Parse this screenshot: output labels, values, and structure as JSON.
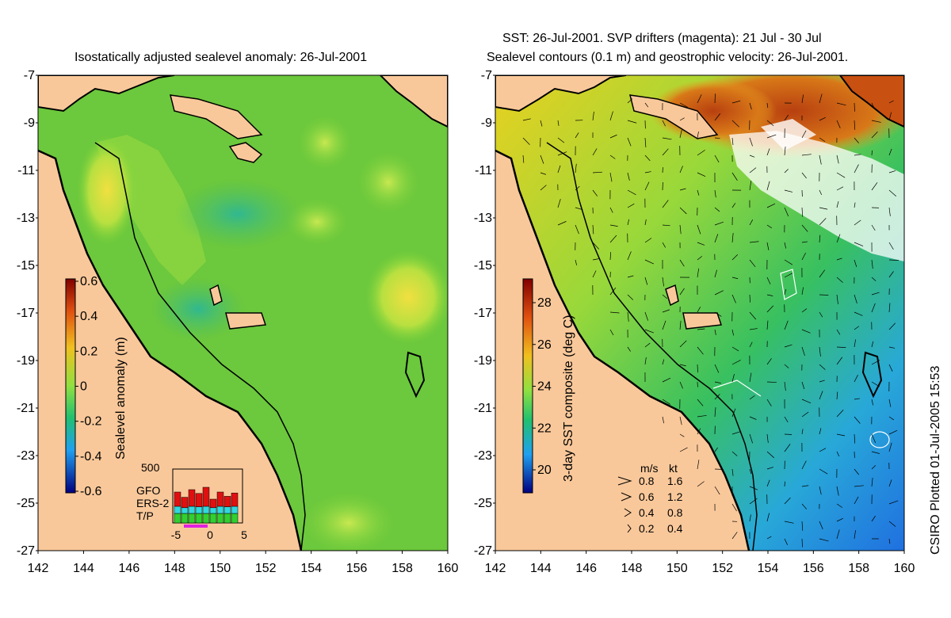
{
  "left_panel": {
    "title": "Isostatically adjusted sealevel anomaly: 26-Jul-2001",
    "colorbar": {
      "label": "Sealevel anomaly (m)",
      "ticks": [
        "0.6",
        "0.4",
        "0.2",
        "0",
        "-0.2",
        "-0.4",
        "-0.6"
      ]
    },
    "inset": {
      "ymax_label": "500",
      "legend": [
        "GFO",
        "ERS-2",
        "T/P"
      ],
      "legend_colors": [
        "#e01010",
        "#30d8e0",
        "#30d030"
      ],
      "xticks": [
        "-5",
        "0",
        "5"
      ]
    }
  },
  "right_panel": {
    "title_line1": "SST: 26-Jul-2001. SVP drifters (magenta): 21 Jul - 30 Jul",
    "title_line2": "Sealevel contours (0.1 m) and geostrophic velocity: 26-Jul-2001.",
    "colorbar": {
      "label": "3-day SST composite (deg C)",
      "ticks": [
        "28",
        "26",
        "24",
        "22",
        "20"
      ]
    },
    "velocity_key": {
      "header_ms": "m/s",
      "header_kt": "kt",
      "rows": [
        {
          "ms": "0.8",
          "kt": "1.6"
        },
        {
          "ms": "0.6",
          "kt": "1.2"
        },
        {
          "ms": "0.4",
          "kt": "0.8"
        },
        {
          "ms": "0.2",
          "kt": "0.4"
        }
      ]
    }
  },
  "axes": {
    "lat_ticks": [
      "-7",
      "-9",
      "-11",
      "-13",
      "-15",
      "-17",
      "-19",
      "-21",
      "-23",
      "-25",
      "-27"
    ],
    "lon_ticks": [
      "142",
      "144",
      "146",
      "148",
      "150",
      "152",
      "154",
      "156",
      "158",
      "160"
    ]
  },
  "side_label": "CSIRO Plotted 01-Jul-2005 15:53",
  "colors": {
    "land": "#f9c89a",
    "ocean_green": "#5cc83c",
    "coast": "#000000"
  }
}
